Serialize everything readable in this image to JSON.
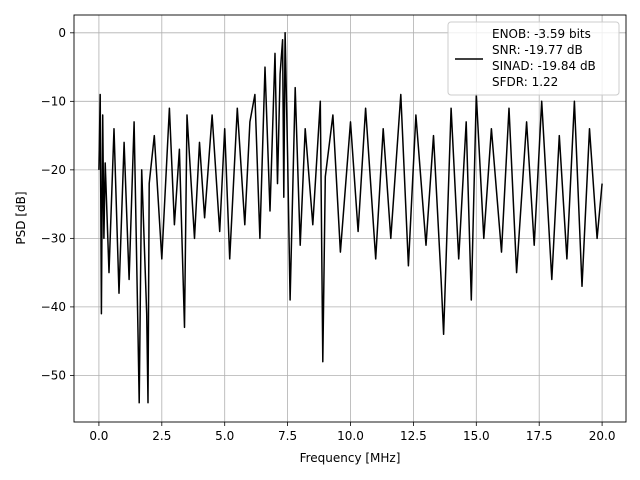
{
  "chart_data": {
    "type": "line",
    "title": "",
    "xlabel": "Frequency [MHz]",
    "ylabel": "PSD [dB]",
    "xlim": [
      -0.99,
      20.95
    ],
    "ylim": [
      -56.8,
      2.6
    ],
    "xticks": [
      0.0,
      2.5,
      5.0,
      7.5,
      10.0,
      12.5,
      15.0,
      17.5,
      20.0
    ],
    "xtick_labels": [
      "0.0",
      "2.5",
      "5.0",
      "7.5",
      "10.0",
      "12.5",
      "15.0",
      "17.5",
      "20.0"
    ],
    "yticks": [
      0,
      -10,
      -20,
      -30,
      -40,
      -50
    ],
    "ytick_labels": [
      "0",
      "−10",
      "−20",
      "−30",
      "−40",
      "−50"
    ],
    "grid": true,
    "legend_position": "top-right",
    "line_color": "#000000",
    "legend": [
      "ENOB: -3.59 bits",
      "SNR: -19.77 dB",
      "SINAD: -19.84 dB",
      "SFDR: 1.22"
    ],
    "series": [
      {
        "x": [
          0.0,
          0.05,
          0.1,
          0.15,
          0.2,
          0.25,
          0.4,
          0.6,
          0.8,
          1.0,
          1.2,
          1.4,
          1.55,
          1.6,
          1.7,
          1.9,
          1.95,
          2.0,
          2.2,
          2.5,
          2.8,
          3.0,
          3.2,
          3.4,
          3.5,
          3.8,
          4.0,
          4.2,
          4.5,
          4.8,
          5.0,
          5.2,
          5.5,
          5.8,
          6.0,
          6.2,
          6.4,
          6.6,
          6.8,
          7.0,
          7.1,
          7.2,
          7.3,
          7.35,
          7.4,
          7.5,
          7.6,
          7.8,
          8.0,
          8.2,
          8.5,
          8.8,
          8.9,
          9.0,
          9.3,
          9.6,
          10.0,
          10.3,
          10.6,
          11.0,
          11.3,
          11.6,
          12.0,
          12.3,
          12.6,
          13.0,
          13.3,
          13.6,
          13.7,
          14.0,
          14.3,
          14.6,
          14.8,
          15.0,
          15.3,
          15.6,
          16.0,
          16.3,
          16.6,
          17.0,
          17.3,
          17.6,
          18.0,
          18.3,
          18.6,
          18.9,
          19.2,
          19.5,
          19.8,
          20.0
        ],
        "y": [
          -20,
          -9,
          -41,
          -12,
          -30,
          -19,
          -35,
          -14,
          -38,
          -16,
          -36,
          -13,
          -43,
          -54,
          -20,
          -41,
          -54,
          -22,
          -15,
          -33,
          -11,
          -28,
          -17,
          -43,
          -12,
          -30,
          -16,
          -27,
          -12,
          -29,
          -14,
          -33,
          -11,
          -28,
          -13,
          -9,
          -30,
          -5,
          -26,
          -3,
          -22,
          -6,
          -1,
          -24,
          0,
          -18,
          -39,
          -8,
          -31,
          -14,
          -28,
          -10,
          -48,
          -21,
          -12,
          -32,
          -13,
          -29,
          -11,
          -33,
          -14,
          -30,
          -9,
          -34,
          -12,
          -31,
          -15,
          -36,
          -44,
          -11,
          -33,
          -13,
          -39,
          -9,
          -30,
          -14,
          -32,
          -11,
          -35,
          -13,
          -31,
          -10,
          -36,
          -15,
          -33,
          -10,
          -37,
          -14,
          -30,
          -22
        ]
      }
    ]
  }
}
